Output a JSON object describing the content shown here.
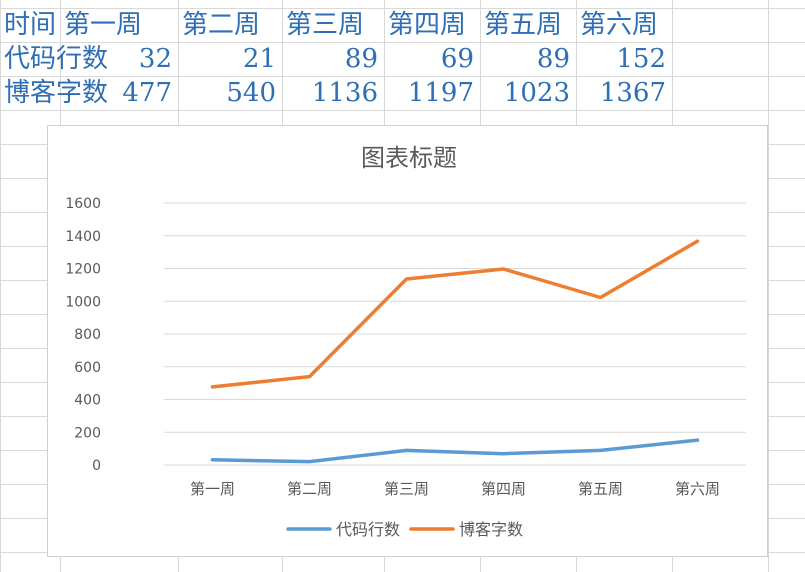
{
  "table": {
    "header": [
      "时间",
      "第一周",
      "第二周",
      "第三周",
      "第四周",
      "第五周",
      "第六周"
    ],
    "rows": [
      {
        "label": "代码行数",
        "values": [
          "32",
          "21",
          "89",
          "69",
          "89",
          "152"
        ]
      },
      {
        "label": "博客字数",
        "values": [
          "477",
          "540",
          "1136",
          "1197",
          "1023",
          "1367"
        ]
      }
    ]
  },
  "chart_data": {
    "type": "line",
    "title": "图表标题",
    "categories": [
      "第一周",
      "第二周",
      "第三周",
      "第四周",
      "第五周",
      "第六周"
    ],
    "series": [
      {
        "name": "代码行数",
        "values": [
          32,
          21,
          89,
          69,
          89,
          152
        ],
        "color": "#5b9bd5"
      },
      {
        "name": "博客字数",
        "values": [
          477,
          540,
          1136,
          1197,
          1023,
          1367
        ],
        "color": "#ed7d31"
      }
    ],
    "ylim": [
      0,
      1600
    ],
    "yticks": [
      "0",
      "200",
      "400",
      "600",
      "800",
      "1000",
      "1200",
      "1400",
      "1600"
    ],
    "grid": true,
    "legend": "bottom",
    "colors": {
      "table_text": "#2e6fb5",
      "sheet_grid": "#d9d9d9",
      "plot_grid": "#d9d9d9",
      "text": "#595959"
    }
  }
}
